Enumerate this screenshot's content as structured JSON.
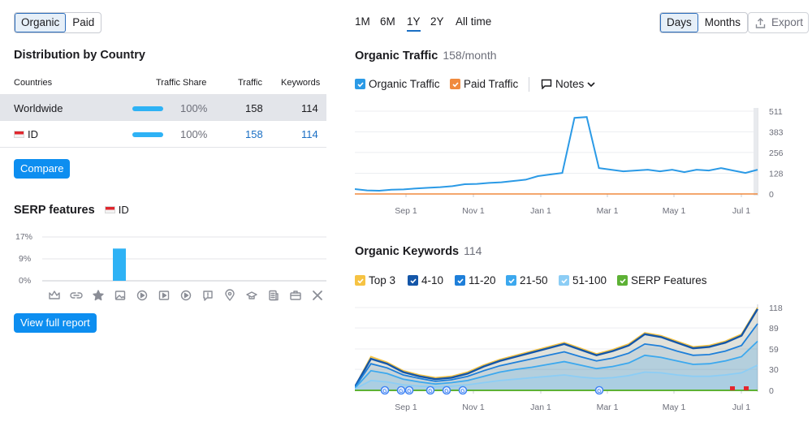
{
  "traffic_type": {
    "options": [
      "Organic",
      "Paid"
    ],
    "selected": "Organic"
  },
  "distribution": {
    "title": "Distribution by Country",
    "columns": [
      "Countries",
      "Traffic Share",
      "Traffic",
      "Keywords"
    ],
    "rows": [
      {
        "country": "Worldwide",
        "share": "100%",
        "share_fraction": 1.0,
        "traffic": "158",
        "keywords": "114"
      },
      {
        "country": "ID",
        "share": "100%",
        "share_fraction": 1.0,
        "traffic": "158",
        "keywords": "114"
      }
    ],
    "compare_label": "Compare"
  },
  "serp": {
    "title": "SERP features",
    "country": "ID",
    "y_ticks": [
      "17%",
      "9%",
      "0%"
    ],
    "feature_icons": [
      "crown-icon",
      "link-icon",
      "star-icon",
      "image-icon",
      "play-icon",
      "video-icon",
      "play-circle-icon",
      "faq-icon",
      "pin-icon",
      "graduation-icon",
      "article-icon",
      "briefcase-icon",
      "x-icon"
    ],
    "view_label": "View full report"
  },
  "period": {
    "tabs": [
      "1M",
      "6M",
      "1Y",
      "2Y",
      "All time"
    ],
    "selected": "1Y"
  },
  "granularity": {
    "options": [
      "Days",
      "Months"
    ],
    "selected": "Days"
  },
  "export_label": "Export",
  "organic_traffic": {
    "title": "Organic Traffic",
    "subtitle": "158/month",
    "legend": [
      {
        "label": "Organic Traffic",
        "color": "#2b9ae6"
      },
      {
        "label": "Paid Traffic",
        "color": "#f08a3e"
      }
    ],
    "notes_label": "Notes"
  },
  "organic_keywords": {
    "title": "Organic Keywords",
    "subtitle": "114",
    "legend": [
      {
        "label": "Top 3",
        "color": "#f6c343"
      },
      {
        "label": "4-10",
        "color": "#1456a8"
      },
      {
        "label": "11-20",
        "color": "#1e7fd9"
      },
      {
        "label": "21-50",
        "color": "#3ca8ee"
      },
      {
        "label": "51-100",
        "color": "#8ccdf5"
      },
      {
        "label": "SERP Features",
        "color": "#5db135"
      }
    ]
  },
  "chart_data": [
    {
      "type": "bar",
      "title": "SERP features",
      "categories": [
        "Top stories",
        "Sitelinks",
        "Reviews",
        "Image",
        "Video",
        "Featured video",
        "Video carousel",
        "People also ask",
        "Local pack",
        "Knowledge panel",
        "Related",
        "Jobs",
        "X"
      ],
      "values": [
        0,
        0,
        0,
        12.5,
        0,
        0,
        0,
        0,
        0,
        0,
        0,
        0,
        0
      ],
      "ylabel": "%",
      "y_ticks": [
        0,
        9,
        17
      ],
      "ylim": [
        0,
        17
      ]
    },
    {
      "type": "line",
      "title": "Organic Traffic",
      "x_ticks": [
        "Sep 1",
        "Nov 1",
        "Jan 1",
        "Mar 1",
        "May 1",
        "Jul 1"
      ],
      "y_ticks": [
        0,
        128,
        256,
        383,
        511
      ],
      "ylim": [
        0,
        511
      ],
      "series": [
        {
          "name": "Organic Traffic",
          "values": [
            30,
            22,
            20,
            26,
            28,
            34,
            38,
            42,
            48,
            60,
            62,
            68,
            72,
            80,
            88,
            110,
            120,
            130,
            470,
            475,
            160,
            150,
            140,
            145,
            150,
            140,
            150,
            135,
            150,
            145,
            160,
            145,
            130,
            150
          ]
        },
        {
          "name": "Paid Traffic",
          "values": [
            0,
            0,
            0,
            0,
            0,
            0,
            0,
            0,
            0,
            0,
            0,
            0,
            0,
            0,
            0,
            0,
            0,
            0,
            0,
            0,
            0,
            0,
            0,
            0,
            0,
            0,
            0,
            0,
            0,
            0,
            0,
            0,
            0,
            0
          ]
        }
      ]
    },
    {
      "type": "area",
      "title": "Organic Keywords",
      "x_ticks": [
        "Sep 1",
        "Nov 1",
        "Jan 1",
        "Mar 1",
        "May 1",
        "Jul 1"
      ],
      "y_ticks": [
        0,
        30,
        59,
        89,
        118
      ],
      "ylim": [
        0,
        118
      ],
      "series": [
        {
          "name": "Top 3",
          "values": [
            5,
            48,
            40,
            28,
            22,
            18,
            20,
            26,
            36,
            44,
            50,
            56,
            62,
            68,
            60,
            52,
            58,
            66,
            82,
            78,
            70,
            62,
            64,
            70,
            80,
            118
          ]
        },
        {
          "name": "4-10",
          "values": [
            5,
            45,
            38,
            26,
            20,
            16,
            18,
            24,
            34,
            42,
            48,
            54,
            60,
            66,
            58,
            50,
            56,
            64,
            80,
            76,
            68,
            60,
            62,
            68,
            78,
            116
          ]
        },
        {
          "name": "11-20",
          "values": [
            4,
            38,
            32,
            22,
            17,
            13,
            15,
            20,
            28,
            35,
            40,
            45,
            50,
            55,
            48,
            42,
            46,
            53,
            66,
            63,
            56,
            50,
            51,
            56,
            64,
            95
          ]
        },
        {
          "name": "21-50",
          "values": [
            3,
            28,
            24,
            16,
            12,
            9,
            11,
            14,
            20,
            26,
            30,
            33,
            37,
            41,
            36,
            31,
            34,
            39,
            50,
            47,
            42,
            37,
            38,
            42,
            48,
            70
          ]
        },
        {
          "name": "51-100",
          "values": [
            2,
            14,
            12,
            8,
            6,
            5,
            6,
            8,
            11,
            14,
            16,
            18,
            20,
            22,
            19,
            17,
            18,
            21,
            26,
            25,
            22,
            20,
            20,
            22,
            25,
            36
          ]
        }
      ],
      "markers": [
        "G",
        "G",
        "G",
        "G",
        "G",
        "G",
        "G"
      ]
    }
  ]
}
